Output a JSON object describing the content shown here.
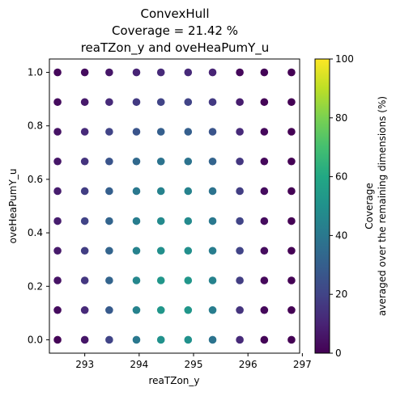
{
  "chart_data": {
    "type": "scatter",
    "title_lines": [
      "ConvexHull",
      "Coverage = 21.42 %",
      "reaTZon_y and oveHeaPumY_u"
    ],
    "xlabel": "reaTZon_y",
    "ylabel": "oveHeaPumY_u",
    "xlim": [
      292.35,
      296.95
    ],
    "ylim": [
      -0.05,
      1.05
    ],
    "x_ticks": [
      293,
      294,
      295,
      296,
      297
    ],
    "y_ticks": [
      0.0,
      0.2,
      0.4,
      0.6,
      0.8,
      1.0
    ],
    "x_tick_labels": [
      "293",
      "294",
      "295",
      "296",
      "297"
    ],
    "y_tick_labels": [
      "0.0",
      "0.2",
      "0.4",
      "0.6",
      "0.8",
      "1.0"
    ],
    "grid": false,
    "x_values": [
      292.5,
      293.0,
      293.45,
      293.95,
      294.4,
      294.9,
      295.35,
      295.85,
      296.3,
      296.8
    ],
    "y_values": [
      0.0,
      0.111,
      0.222,
      0.333,
      0.444,
      0.556,
      0.667,
      0.778,
      0.889,
      1.0
    ],
    "coverage_grid_rows_from_top": [
      [
        2,
        3,
        6,
        10,
        12,
        12,
        10,
        2,
        1,
        0
      ],
      [
        3,
        7,
        12,
        17,
        20,
        20,
        17,
        8,
        1,
        0
      ],
      [
        5,
        12,
        20,
        26,
        30,
        30,
        26,
        12,
        2,
        0
      ],
      [
        6,
        15,
        26,
        34,
        38,
        38,
        32,
        16,
        2,
        0
      ],
      [
        8,
        18,
        30,
        40,
        44,
        44,
        38,
        18,
        3,
        0
      ],
      [
        8,
        20,
        32,
        42,
        47,
        47,
        40,
        20,
        3,
        0
      ],
      [
        7,
        18,
        32,
        44,
        49,
        49,
        42,
        20,
        3,
        0
      ],
      [
        5,
        16,
        32,
        46,
        52,
        52,
        44,
        18,
        2,
        0
      ],
      [
        3,
        12,
        28,
        44,
        52,
        52,
        42,
        15,
        2,
        0
      ],
      [
        1,
        6,
        20,
        40,
        50,
        50,
        38,
        12,
        1,
        0
      ]
    ],
    "colorbar": {
      "colormap": "viridis",
      "min": 0,
      "max": 100,
      "ticks": [
        0,
        20,
        40,
        60,
        80,
        100
      ],
      "tick_labels": [
        "0",
        "20",
        "40",
        "60",
        "80",
        "100"
      ],
      "label_lines": [
        "Coverage",
        "averaged over the remaining dimensions (%)"
      ]
    }
  }
}
